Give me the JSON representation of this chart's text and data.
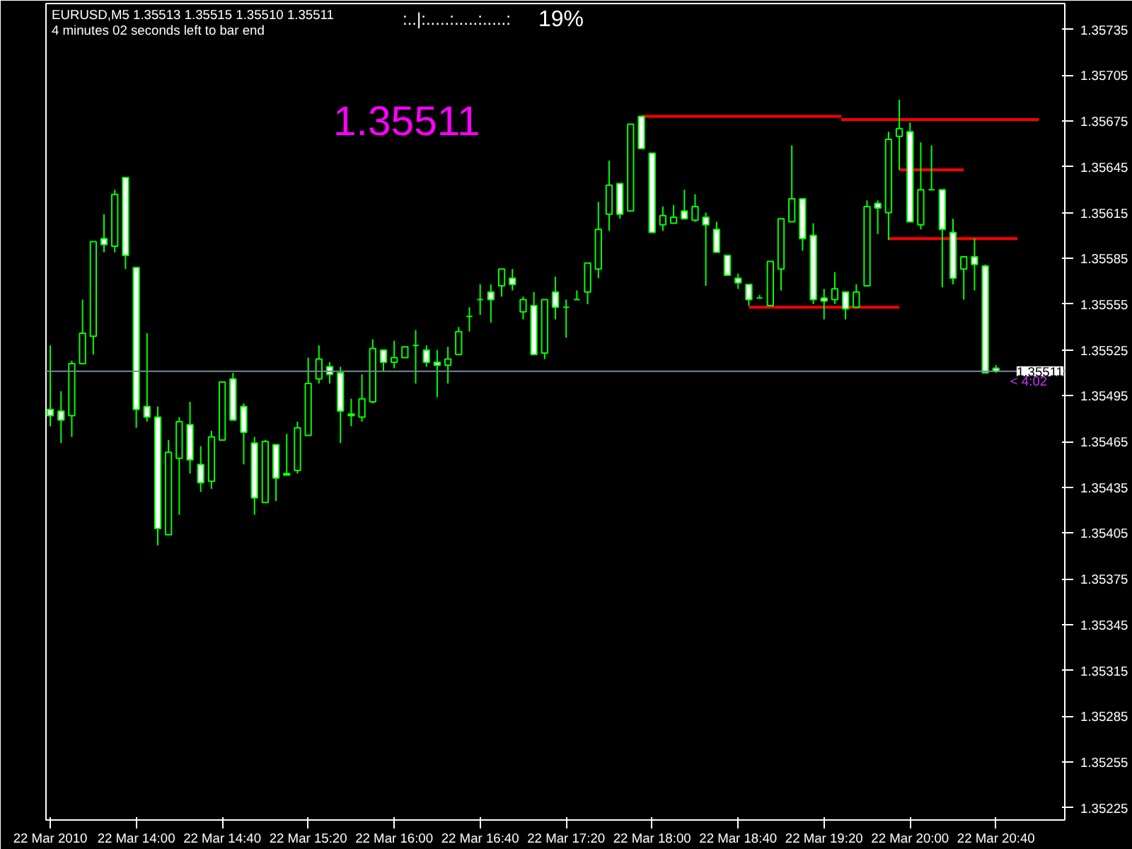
{
  "chart_data": {
    "type": "candlestick",
    "title": "EURUSD,M5  1.35513 1.35515 1.35510 1.35511",
    "subtitle": "4 minutes 02 seconds left to bar end",
    "annotations": [
      "1.35511",
      "< 4:02",
      ":..|:.....:.....:.....:",
      "19%"
    ],
    "color": "#00ff00",
    "x": [
      "2010-03-22T13:20",
      "2010-03-22T13:25",
      "2010-03-22T13:30",
      "2010-03-22T13:35",
      "2010-03-22T13:40",
      "2010-03-22T13:45",
      "2010-03-22T13:50",
      "2010-03-22T13:55",
      "2010-03-22T14:00",
      "2010-03-22T14:05",
      "2010-03-22T14:10",
      "2010-03-22T14:15",
      "2010-03-22T14:20",
      "2010-03-22T14:25",
      "2010-03-22T14:30",
      "2010-03-22T14:35",
      "2010-03-22T14:40",
      "2010-03-22T14:45",
      "2010-03-22T14:50",
      "2010-03-22T14:55",
      "2010-03-22T15:00",
      "2010-03-22T15:05",
      "2010-03-22T15:10",
      "2010-03-22T15:15",
      "2010-03-22T15:20",
      "2010-03-22T15:25",
      "2010-03-22T15:30",
      "2010-03-22T15:35",
      "2010-03-22T15:40",
      "2010-03-22T15:45",
      "2010-03-22T15:50",
      "2010-03-22T15:55",
      "2010-03-22T16:00",
      "2010-03-22T16:05",
      "2010-03-22T16:10",
      "2010-03-22T16:15",
      "2010-03-22T16:20",
      "2010-03-22T16:25",
      "2010-03-22T16:30",
      "2010-03-22T16:35",
      "2010-03-22T16:40",
      "2010-03-22T16:45",
      "2010-03-22T16:50",
      "2010-03-22T16:55",
      "2010-03-22T17:00",
      "2010-03-22T17:05",
      "2010-03-22T17:10",
      "2010-03-22T17:15",
      "2010-03-22T17:20",
      "2010-03-22T17:25",
      "2010-03-22T17:30",
      "2010-03-22T17:35",
      "2010-03-22T17:40",
      "2010-03-22T17:45",
      "2010-03-22T17:50",
      "2010-03-22T17:55",
      "2010-03-22T18:00",
      "2010-03-22T18:05",
      "2010-03-22T18:10",
      "2010-03-22T18:15",
      "2010-03-22T18:20",
      "2010-03-22T18:25",
      "2010-03-22T18:30",
      "2010-03-22T18:35",
      "2010-03-22T18:40",
      "2010-03-22T18:45",
      "2010-03-22T18:50",
      "2010-03-22T18:55",
      "2010-03-22T19:00",
      "2010-03-22T19:05",
      "2010-03-22T19:10",
      "2010-03-22T19:15",
      "2010-03-22T19:20",
      "2010-03-22T19:25",
      "2010-03-22T19:30",
      "2010-03-22T19:35",
      "2010-03-22T19:40",
      "2010-03-22T19:45",
      "2010-03-22T19:50",
      "2010-03-22T19:55",
      "2010-03-22T20:00",
      "2010-03-22T20:05",
      "2010-03-22T20:10",
      "2010-03-22T20:15",
      "2010-03-22T20:20",
      "2010-03-22T20:25",
      "2010-03-22T20:30",
      "2010-03-22T20:35",
      "2010-03-22T20:40"
    ],
    "ohlc": [
      [
        1.35486,
        1.35528,
        1.35475,
        1.35482
      ],
      [
        1.35485,
        1.35498,
        1.35464,
        1.35479
      ],
      [
        1.35482,
        1.35518,
        1.35468,
        1.35516
      ],
      [
        1.35516,
        1.35558,
        1.35516,
        1.35536
      ],
      [
        1.35534,
        1.35596,
        1.35522,
        1.35596
      ],
      [
        1.35598,
        1.35614,
        1.35589,
        1.35594
      ],
      [
        1.35593,
        1.3563,
        1.35589,
        1.35627
      ],
      [
        1.35638,
        1.35638,
        1.35578,
        1.35587
      ],
      [
        1.35579,
        1.35579,
        1.35474,
        1.35486
      ],
      [
        1.35488,
        1.35536,
        1.35478,
        1.35481
      ],
      [
        1.35481,
        1.35488,
        1.35397,
        1.35408
      ],
      [
        1.35404,
        1.35466,
        1.35404,
        1.35458
      ],
      [
        1.35454,
        1.35481,
        1.35417,
        1.35478
      ],
      [
        1.35476,
        1.35491,
        1.35444,
        1.35453
      ],
      [
        1.3545,
        1.35462,
        1.35432,
        1.35438
      ],
      [
        1.35439,
        1.35472,
        1.35434,
        1.35468
      ],
      [
        1.35466,
        1.35504,
        1.35466,
        1.35504
      ],
      [
        1.35506,
        1.3551,
        1.35479,
        1.35479
      ],
      [
        1.35488,
        1.3549,
        1.3545,
        1.35471
      ],
      [
        1.35464,
        1.35468,
        1.35417,
        1.35428
      ],
      [
        1.35425,
        1.35466,
        1.35425,
        1.35465
      ],
      [
        1.35463,
        1.35463,
        1.35426,
        1.35441
      ],
      [
        1.35444,
        1.3547,
        1.35443,
        1.35443
      ],
      [
        1.35446,
        1.35478,
        1.35444,
        1.35474
      ],
      [
        1.35469,
        1.3552,
        1.35469,
        1.35503
      ],
      [
        1.35506,
        1.35528,
        1.35503,
        1.35519
      ],
      [
        1.35514,
        1.35517,
        1.35503,
        1.35509
      ],
      [
        1.3551,
        1.35514,
        1.35464,
        1.35485
      ],
      [
        1.35483,
        1.35493,
        1.35475,
        1.35482
      ],
      [
        1.35481,
        1.35509,
        1.35478,
        1.35493
      ],
      [
        1.35491,
        1.35532,
        1.3549,
        1.35526
      ],
      [
        1.35525,
        1.35525,
        1.35511,
        1.35517
      ],
      [
        1.35517,
        1.35531,
        1.35513,
        1.3552
      ],
      [
        1.3552,
        1.35527,
        1.3552,
        1.35527
      ],
      [
        1.35528,
        1.35538,
        1.35503,
        1.35528
      ],
      [
        1.35525,
        1.35528,
        1.35514,
        1.35517
      ],
      [
        1.35517,
        1.35525,
        1.35494,
        1.35515
      ],
      [
        1.35515,
        1.35527,
        1.35503,
        1.35519
      ],
      [
        1.35522,
        1.3554,
        1.35522,
        1.35537
      ],
      [
        1.35547,
        1.35553,
        1.35537,
        1.35547
      ],
      [
        1.35558,
        1.35568,
        1.35548,
        1.35558
      ],
      [
        1.35563,
        1.35568,
        1.35543,
        1.35558
      ],
      [
        1.35567,
        1.35578,
        1.3556,
        1.35578
      ],
      [
        1.35572,
        1.35578,
        1.35564,
        1.35568
      ],
      [
        1.3555,
        1.3556,
        1.35545,
        1.35558
      ],
      [
        1.35554,
        1.35563,
        1.35522,
        1.35522
      ],
      [
        1.35523,
        1.35558,
        1.35519,
        1.35558
      ],
      [
        1.35563,
        1.35573,
        1.35545,
        1.35553
      ],
      [
        1.35553,
        1.35558,
        1.35533,
        1.35553
      ],
      [
        1.35558,
        1.35564,
        1.35558,
        1.35558
      ],
      [
        1.35563,
        1.35582,
        1.35555,
        1.35582
      ],
      [
        1.35578,
        1.35622,
        1.35572,
        1.35604
      ],
      [
        1.35614,
        1.35649,
        1.35603,
        1.35633
      ],
      [
        1.35634,
        1.35634,
        1.35611,
        1.35614
      ],
      [
        1.35616,
        1.35673,
        1.35616,
        1.35673
      ],
      [
        1.35678,
        1.35678,
        1.35657,
        1.35657
      ],
      [
        1.35654,
        1.35654,
        1.35602,
        1.35602
      ],
      [
        1.35607,
        1.35619,
        1.35603,
        1.35613
      ],
      [
        1.35608,
        1.3562,
        1.35608,
        1.35612
      ],
      [
        1.35616,
        1.3563,
        1.35611,
        1.35611
      ],
      [
        1.3561,
        1.35627,
        1.35609,
        1.35619
      ],
      [
        1.35612,
        1.35615,
        1.35567,
        1.35607
      ],
      [
        1.35604,
        1.35609,
        1.35589,
        1.35589
      ],
      [
        1.35587,
        1.35587,
        1.35574,
        1.35574
      ],
      [
        1.35572,
        1.35575,
        1.35565,
        1.35569
      ],
      [
        1.35568,
        1.35568,
        1.35554,
        1.35558
      ],
      [
        1.35559,
        1.35561,
        1.35559,
        1.35559
      ],
      [
        1.35554,
        1.35583,
        1.35554,
        1.35583
      ],
      [
        1.35578,
        1.35611,
        1.35564,
        1.35611
      ],
      [
        1.35609,
        1.35659,
        1.35609,
        1.35624
      ],
      [
        1.35624,
        1.35624,
        1.3559,
        1.35598
      ],
      [
        1.356,
        1.35608,
        1.35555,
        1.35558
      ],
      [
        1.35559,
        1.35565,
        1.35545,
        1.35557
      ],
      [
        1.35558,
        1.35576,
        1.35555,
        1.35565
      ],
      [
        1.35563,
        1.35563,
        1.35545,
        1.35552
      ],
      [
        1.35553,
        1.35568,
        1.35553,
        1.35563
      ],
      [
        1.35567,
        1.35623,
        1.35567,
        1.35619
      ],
      [
        1.35621,
        1.35623,
        1.35601,
        1.35618
      ],
      [
        1.35615,
        1.35668,
        1.35597,
        1.35663
      ],
      [
        1.35665,
        1.35689,
        1.35643,
        1.3567
      ],
      [
        1.35668,
        1.35674,
        1.35609,
        1.35609
      ],
      [
        1.35607,
        1.35661,
        1.35604,
        1.3563
      ],
      [
        1.3563,
        1.35659,
        1.3563,
        1.3563
      ],
      [
        1.3563,
        1.3563,
        1.35566,
        1.35604
      ],
      [
        1.35602,
        1.35611,
        1.35568,
        1.35572
      ],
      [
        1.35578,
        1.35586,
        1.35558,
        1.35586
      ],
      [
        1.35586,
        1.35598,
        1.35564,
        1.35581
      ],
      [
        1.3558,
        1.35581,
        1.3551,
        1.3551
      ],
      [
        1.35513,
        1.35515,
        1.3551,
        1.35511
      ]
    ],
    "series": [
      {
        "type": "line",
        "color": "#ff0000",
        "x": [
          "2010-03-22T17:55",
          "2010-03-22T19:28"
        ],
        "values": [
          1.35678,
          1.35678
        ]
      },
      {
        "type": "line",
        "color": "#ff0000",
        "x": [
          "2010-03-22T19:28",
          "2010-03-22T21:00"
        ],
        "values": [
          1.35676,
          1.35676
        ]
      },
      {
        "type": "line",
        "color": "#ff0000",
        "x": [
          "2010-03-22T19:55",
          "2010-03-22T20:25"
        ],
        "values": [
          1.35643,
          1.35643
        ]
      },
      {
        "type": "line",
        "color": "#ff0000",
        "x": [
          "2010-03-22T19:50",
          "2010-03-22T20:50"
        ],
        "values": [
          1.35598,
          1.35598
        ]
      },
      {
        "type": "line",
        "color": "#ff0000",
        "x": [
          "2010-03-22T18:45",
          "2010-03-22T19:55"
        ],
        "values": [
          1.35553,
          1.35553
        ]
      }
    ],
    "ref_lines": [
      {
        "axis": "y",
        "value": 1.35511,
        "label": "1.35511",
        "color": "#778899"
      }
    ],
    "xlim": [
      "2010-03-22T13:18",
      "2010-03-22T21:12"
    ],
    "xticks": [
      {
        "value": "2010-03-22T13:20",
        "label": "22 Mar 2010"
      },
      {
        "value": "2010-03-22T14:00",
        "label": "22 Mar 14:00"
      },
      {
        "value": "2010-03-22T14:40",
        "label": "22 Mar 14:40"
      },
      {
        "value": "2010-03-22T15:20",
        "label": "22 Mar 15:20"
      },
      {
        "value": "2010-03-22T16:00",
        "label": "22 Mar 16:00"
      },
      {
        "value": "2010-03-22T16:40",
        "label": "22 Mar 16:40"
      },
      {
        "value": "2010-03-22T17:20",
        "label": "22 Mar 17:20"
      },
      {
        "value": "2010-03-22T18:00",
        "label": "22 Mar 18:00"
      },
      {
        "value": "2010-03-22T18:40",
        "label": "22 Mar 18:40"
      },
      {
        "value": "2010-03-22T19:20",
        "label": "22 Mar 19:20"
      },
      {
        "value": "2010-03-22T20:00",
        "label": "22 Mar 20:00"
      },
      {
        "value": "2010-03-22T20:40",
        "label": "22 Mar 20:40"
      }
    ],
    "ylim": [
      1.35217,
      1.35752
    ],
    "yticks": [
      1.35735,
      1.35705,
      1.35675,
      1.35645,
      1.35615,
      1.35585,
      1.35555,
      1.35525,
      1.35495,
      1.35465,
      1.35435,
      1.35405,
      1.35375,
      1.35345,
      1.35315,
      1.35285,
      1.35255,
      1.35225
    ],
    "grid": false
  }
}
